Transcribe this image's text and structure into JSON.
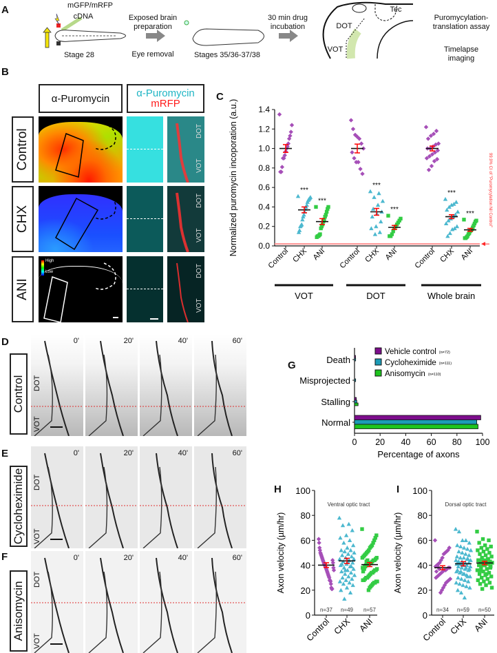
{
  "panels": {
    "A": "A",
    "B": "B",
    "C": "C",
    "D": "D",
    "E": "E",
    "F": "F",
    "G": "G",
    "H": "H",
    "I": "I"
  },
  "panel_a": {
    "plasmid": "mGFP/mRFP",
    "cdna": "cDNA",
    "stage1": "Stage 28",
    "step1_top": "Exposed brain preparation",
    "step1_bottom": "Eye removal",
    "stage2": "Stages 35/36-37/38",
    "step2_top": "30 min drug incubation",
    "brain_tec": "Tec",
    "brain_dot": "DOT",
    "brain_vot": "VOT",
    "assay1": "Puromycylation-translation assay",
    "assay2": "Timelapse imaging"
  },
  "panel_b": {
    "header_left": "α-Puromycin",
    "header_right_line1": "α-Puromycin",
    "header_right_line2": "mRFP",
    "header_right_color1": "#1fb5c4",
    "header_right_color2": "#ff1a1a",
    "rows": [
      "Control",
      "CHX",
      "ANI"
    ],
    "dot": "DOT",
    "vot": "VOT",
    "colorbar_high": "High",
    "colorbar_low": "Low"
  },
  "timelapse": {
    "times": [
      "0'",
      "20'",
      "40'",
      "60'"
    ],
    "rows": [
      "Control",
      "Cycloheximide",
      "Anisomycin"
    ],
    "dot": "DOT",
    "vot": "VOT"
  },
  "chart_data": [
    {
      "id": "C",
      "type": "scatter",
      "ylabel": "Normalized puromycin incoporation (a.u.)",
      "ylim": [
        0,
        1.4
      ],
      "yticks": [
        "0.0",
        "0.2",
        "0.4",
        "0.6",
        "0.8",
        "1.0",
        "1.2",
        "1.4"
      ],
      "groups": [
        "VOT",
        "DOT",
        "Whole brain"
      ],
      "categories": [
        "Control",
        "CHX",
        "ANI"
      ],
      "threshold": {
        "value": 0.02,
        "label": "99.9% CI of \"Puromycylation Nil Control\"",
        "color": "#ff2a2a"
      },
      "significance": "***",
      "colors": {
        "Control": "#a64fb8",
        "CHX": "#4cb8cf",
        "ANI": "#33cc44"
      },
      "series": [
        {
          "group": "VOT",
          "category": "Control",
          "mean": 1.0,
          "sem": 0.04,
          "sig": "",
          "points": [
            1.35,
            1.24,
            1.17,
            1.13,
            1.1,
            1.05,
            1.02,
            1.0,
            0.97,
            0.93,
            0.9,
            0.9,
            0.81,
            0.76,
            0.76
          ]
        },
        {
          "group": "VOT",
          "category": "CHX",
          "mean": 0.37,
          "sem": 0.03,
          "sig": "***",
          "points": [
            0.51,
            0.5,
            0.49,
            0.48,
            0.47,
            0.45,
            0.42,
            0.4,
            0.38,
            0.35,
            0.32,
            0.3,
            0.27,
            0.22,
            0.21,
            0.2,
            0.16,
            0.14
          ]
        },
        {
          "group": "VOT",
          "category": "ANI",
          "mean": 0.25,
          "sem": 0.03,
          "sig": "***",
          "points": [
            0.4,
            0.4,
            0.38,
            0.35,
            0.32,
            0.3,
            0.27,
            0.25,
            0.22,
            0.2,
            0.18,
            0.12,
            0.11,
            0.1,
            0.1,
            0.09
          ]
        },
        {
          "group": "DOT",
          "category": "Control",
          "mean": 1.0,
          "sem": 0.045,
          "sig": "",
          "points": [
            1.29,
            1.2,
            1.14,
            1.12,
            1.1,
            1.05,
            1.0,
            0.96,
            0.9,
            0.86,
            0.86,
            0.79,
            0.74
          ]
        },
        {
          "group": "DOT",
          "category": "CHX",
          "mean": 0.35,
          "sem": 0.035,
          "sig": "***",
          "points": [
            0.56,
            0.54,
            0.5,
            0.46,
            0.42,
            0.38,
            0.35,
            0.33,
            0.3,
            0.25,
            0.2,
            0.18,
            0.14,
            0.12
          ]
        },
        {
          "group": "DOT",
          "category": "ANI",
          "mean": 0.19,
          "sem": 0.02,
          "sig": "***",
          "points": [
            0.31,
            0.28,
            0.26,
            0.24,
            0.22,
            0.2,
            0.18,
            0.15,
            0.12,
            0.1,
            0.1
          ]
        },
        {
          "group": "Whole brain",
          "category": "Control",
          "mean": 1.0,
          "sem": 0.025,
          "sig": "",
          "points": [
            1.22,
            1.18,
            1.15,
            1.13,
            1.1,
            1.05,
            1.04,
            1.02,
            1.0,
            1.0,
            0.98,
            0.96,
            0.94,
            0.92,
            0.9,
            0.89,
            0.87,
            0.82,
            0.78
          ]
        },
        {
          "group": "Whole brain",
          "category": "CHX",
          "mean": 0.3,
          "sem": 0.02,
          "sig": "***",
          "points": [
            0.48,
            0.45,
            0.43,
            0.42,
            0.4,
            0.37,
            0.35,
            0.32,
            0.3,
            0.28,
            0.26,
            0.23,
            0.2,
            0.18,
            0.17,
            0.13,
            0.1
          ]
        },
        {
          "group": "Whole brain",
          "category": "ANI",
          "mean": 0.165,
          "sem": 0.015,
          "sig": "***",
          "points": [
            0.27,
            0.26,
            0.25,
            0.23,
            0.21,
            0.19,
            0.17,
            0.16,
            0.15,
            0.13,
            0.12,
            0.1,
            0.09,
            0.08,
            0.08
          ]
        }
      ]
    },
    {
      "id": "G",
      "type": "bar",
      "orientation": "horizontal",
      "xlabel": "Percentage of axons",
      "xlim": [
        0,
        100
      ],
      "xticks": [
        "0",
        "20",
        "40",
        "60",
        "80",
        "100"
      ],
      "categories": [
        "Death",
        "Misprojected",
        "Stalling",
        "Normal"
      ],
      "legend_position": "top-right",
      "series": [
        {
          "name": "Vehicle control",
          "n": "(n=72)",
          "color": "#7d0d8c",
          "values": [
            0.5,
            0,
            1.4,
            98.6
          ]
        },
        {
          "name": "Cycloheximide",
          "n": "(n=111)",
          "color": "#1c9bb6",
          "values": [
            0.9,
            0.9,
            1.8,
            95.5
          ]
        },
        {
          "name": "Anisomycin",
          "n": "(n=110)",
          "color": "#1ec41e",
          "values": [
            0,
            0,
            2.8,
            96.5
          ]
        }
      ]
    },
    {
      "id": "H",
      "type": "scatter",
      "title": "Ventral optic tract",
      "ylabel": "Axon velocity (µm/hr)",
      "ylim": [
        0,
        100
      ],
      "yticks": [
        "0",
        "20",
        "40",
        "60",
        "80",
        "100"
      ],
      "categories": [
        "Control",
        "CHX",
        "ANI"
      ],
      "colors": {
        "Control": "#a64fb8",
        "CHX": "#4cb8cf",
        "ANI": "#33cc44"
      },
      "series": [
        {
          "category": "Control",
          "n": "n=37",
          "mean": 40.1,
          "sem": 1.9,
          "points": [
            61,
            58,
            54,
            52,
            50,
            49,
            48,
            47,
            46,
            45,
            44,
            43,
            42,
            41,
            40,
            40,
            39,
            38,
            37,
            36,
            35,
            34,
            33,
            32,
            31,
            30,
            28,
            28,
            27,
            25,
            22,
            21,
            21,
            44,
            42,
            38,
            36
          ]
        },
        {
          "category": "CHX",
          "n": "n=49",
          "mean": 43.5,
          "sem": 2.1,
          "points": [
            78,
            73,
            72,
            68,
            64,
            62,
            60,
            58,
            56,
            54,
            52,
            52,
            51,
            50,
            49,
            48,
            47,
            46,
            45,
            44,
            43,
            42,
            41,
            40,
            39,
            38,
            37,
            36,
            35,
            34,
            33,
            32,
            31,
            30,
            29,
            28,
            27,
            26,
            25,
            24,
            22,
            20,
            18,
            13,
            45,
            43,
            41,
            39,
            36
          ]
        },
        {
          "category": "ANI",
          "n": "n=57",
          "mean": 40.5,
          "sem": 1.6,
          "points": [
            69,
            64,
            62,
            60,
            58,
            56,
            55,
            54,
            52,
            51,
            50,
            49,
            48,
            47,
            46,
            46,
            45,
            44,
            44,
            43,
            42,
            42,
            41,
            41,
            40,
            40,
            39,
            38,
            38,
            37,
            36,
            36,
            35,
            34,
            34,
            33,
            32,
            31,
            30,
            30,
            29,
            28,
            28,
            27,
            27,
            26,
            26,
            25,
            24,
            23,
            22,
            20,
            44,
            43,
            39,
            37,
            35
          ]
        }
      ]
    },
    {
      "id": "I",
      "type": "scatter",
      "title": "Dorsal optic tract",
      "ylabel": "Axon velocity (µm/hr)",
      "ylim": [
        0,
        100
      ],
      "yticks": [
        "0",
        "20",
        "40",
        "60",
        "80",
        "100"
      ],
      "categories": [
        "Control",
        "CHX",
        "ANI"
      ],
      "colors": {
        "Control": "#a64fb8",
        "CHX": "#4cb8cf",
        "ANI": "#33cc44"
      },
      "series": [
        {
          "category": "Control",
          "n": "n=34",
          "mean": 38.0,
          "sem": 1.6,
          "points": [
            60,
            54,
            52,
            51,
            50,
            49,
            46,
            44,
            42,
            41,
            40,
            39,
            38,
            38,
            37,
            36,
            36,
            35,
            34,
            33,
            32,
            31,
            30,
            29,
            28,
            27,
            26,
            24,
            22,
            20,
            18,
            37,
            39,
            35
          ]
        },
        {
          "category": "CHX",
          "n": "n=59",
          "mean": 41.2,
          "sem": 1.7,
          "points": [
            69,
            67,
            60,
            60,
            58,
            56,
            55,
            54,
            53,
            52,
            51,
            50,
            49,
            48,
            47,
            46,
            46,
            45,
            44,
            43,
            43,
            42,
            42,
            41,
            41,
            40,
            40,
            39,
            39,
            38,
            37,
            36,
            35,
            34,
            33,
            32,
            31,
            30,
            29,
            28,
            27,
            26,
            25,
            24,
            23,
            22,
            20,
            18,
            14,
            45,
            44,
            42,
            40,
            38,
            37,
            36,
            35,
            33,
            31
          ]
        },
        {
          "category": "ANI",
          "n": "n=50",
          "mean": 41.8,
          "sem": 1.4,
          "points": [
            67,
            61,
            60,
            58,
            56,
            55,
            54,
            53,
            52,
            51,
            50,
            49,
            48,
            47,
            46,
            45,
            44,
            44,
            43,
            43,
            42,
            42,
            41,
            41,
            40,
            40,
            39,
            38,
            37,
            36,
            35,
            34,
            33,
            32,
            31,
            30,
            29,
            28,
            27,
            26,
            25,
            24,
            22,
            21,
            45,
            44,
            40,
            38,
            36,
            33
          ]
        }
      ]
    }
  ]
}
